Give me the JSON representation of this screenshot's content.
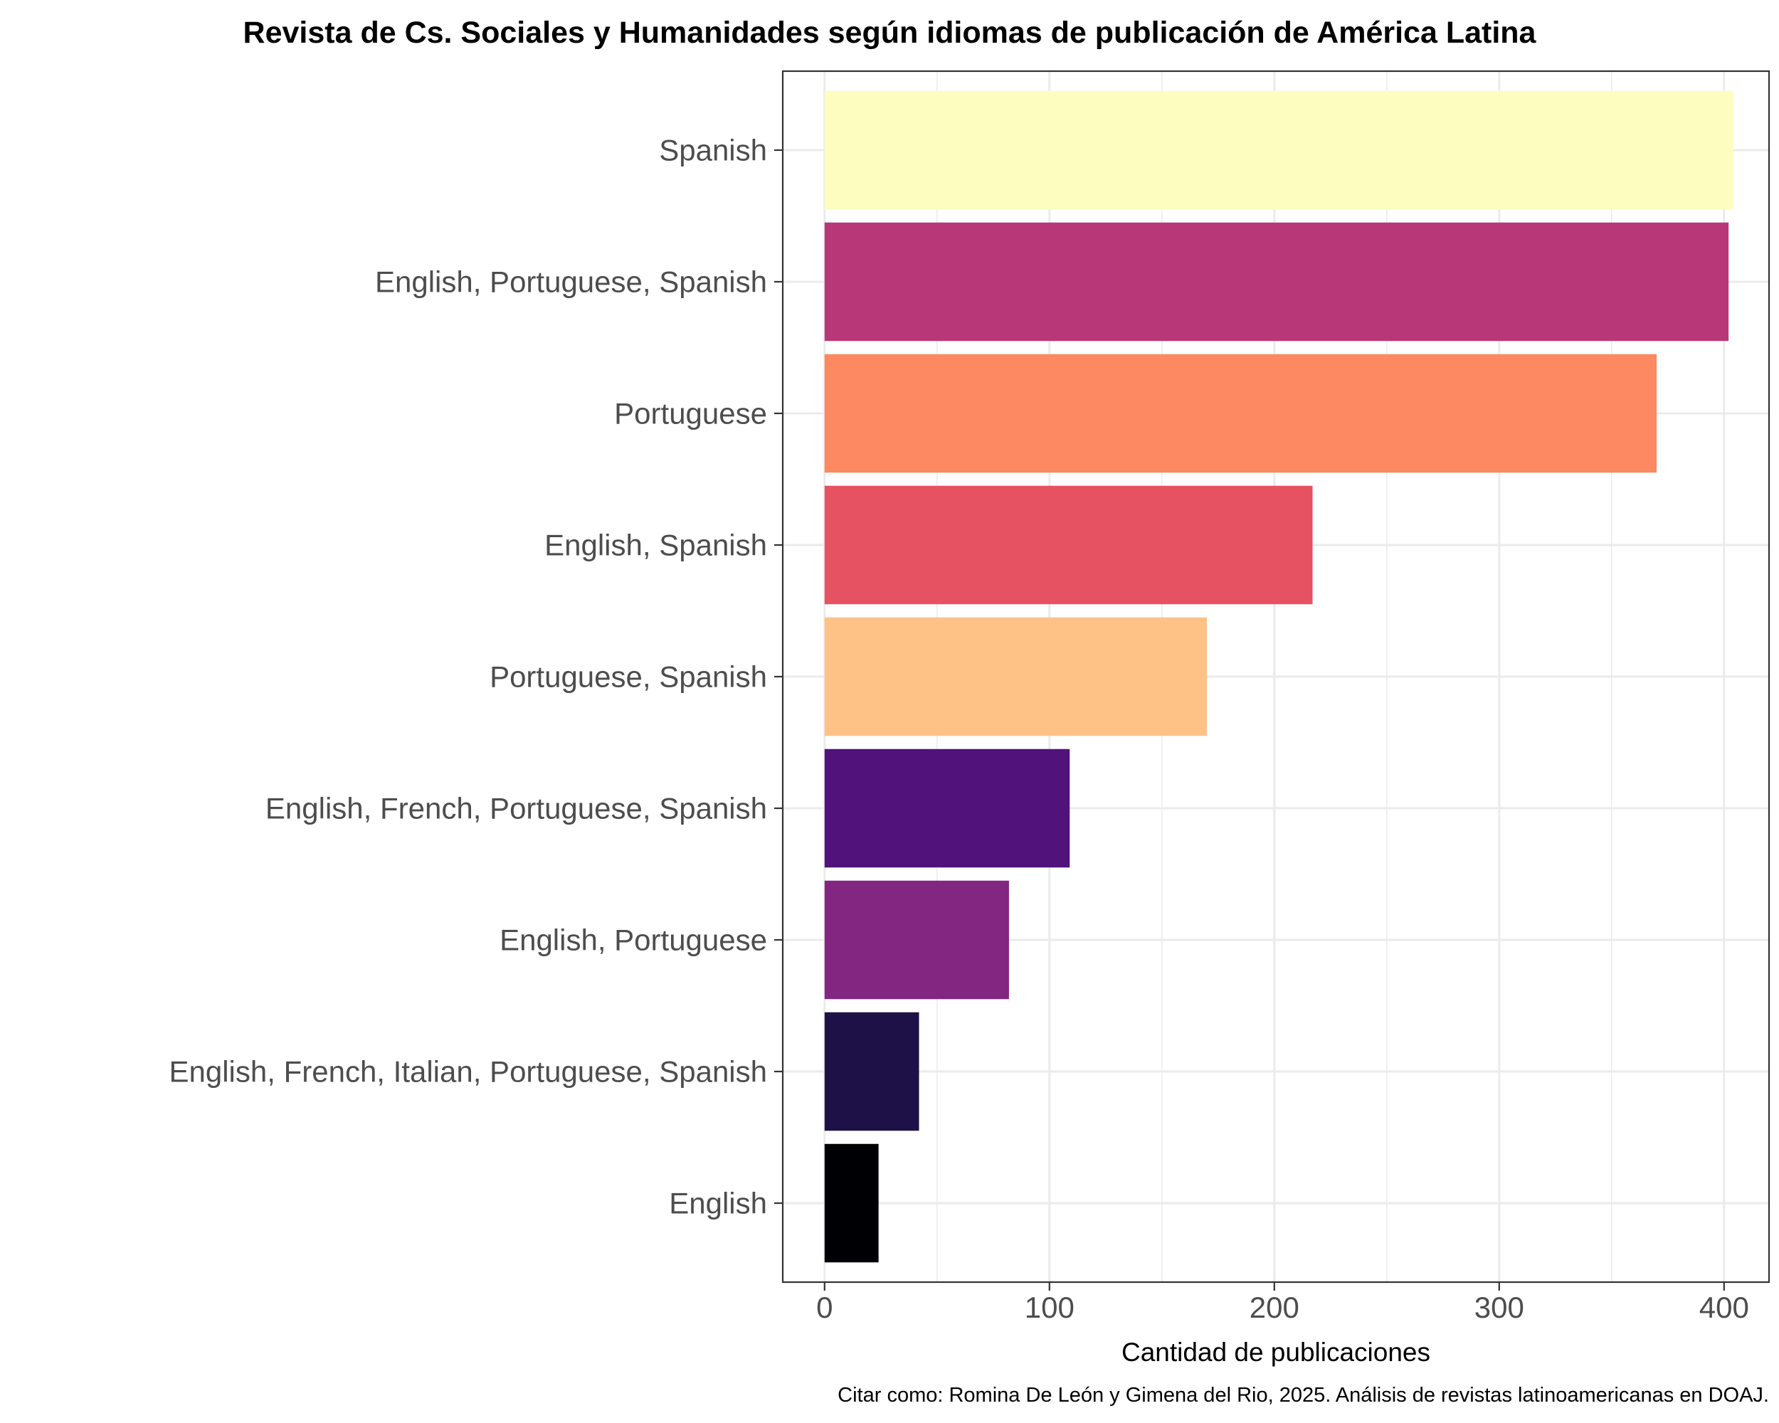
{
  "chart_data": {
    "type": "bar",
    "orientation": "horizontal",
    "title": "Revista de Cs. Sociales y Humanidades según idiomas de publicación de América Latina",
    "xlabel": "Cantidad de publicaciones",
    "ylabel": "",
    "caption": "Citar como: Romina De León y Gimena del Rio, 2025. Análisis de revistas latinoamericanas en DOAJ.",
    "xlim": [
      -18.6,
      420
    ],
    "xticks": [
      0,
      100,
      200,
      300,
      400
    ],
    "grid": true,
    "legend": "none",
    "categories": [
      "Spanish",
      "English, Portuguese, Spanish",
      "Portuguese",
      "English, Spanish",
      "Portuguese, Spanish",
      "English, French, Portuguese, Spanish",
      "English, Portuguese",
      "English, French, Italian, Portuguese, Spanish",
      "English"
    ],
    "values": [
      404,
      402,
      370,
      217,
      170,
      109,
      82,
      42,
      24
    ],
    "colors": [
      "#FCFDBF",
      "#B73779",
      "#FC8961",
      "#E75263",
      "#FEC287",
      "#51127C",
      "#822681",
      "#1D1147",
      "#000004"
    ]
  }
}
